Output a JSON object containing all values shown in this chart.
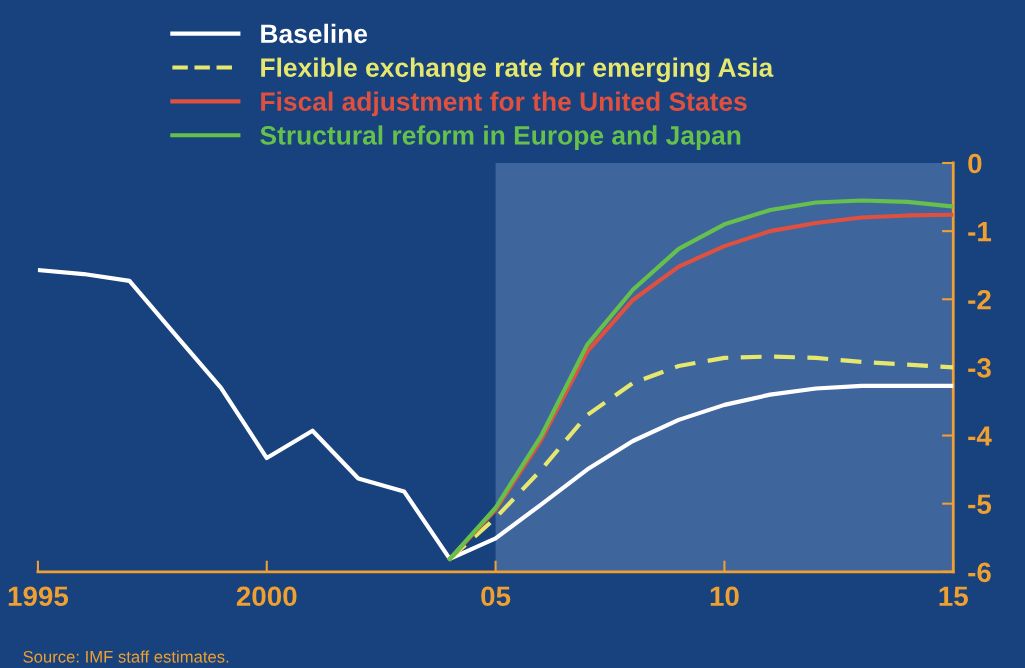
{
  "chart_data": {
    "type": "line",
    "x": [
      1995,
      1996,
      1997,
      1998,
      1999,
      2000,
      2001,
      2002,
      2003,
      2004,
      2005,
      2006,
      2007,
      2008,
      2009,
      2010,
      2011,
      2012,
      2013,
      2014,
      2015
    ],
    "series": [
      {
        "name": "Baseline",
        "color": "#ffffff",
        "line_style": "solid",
        "values": [
          -1.57,
          -1.63,
          -1.73,
          -2.52,
          -3.3,
          -4.33,
          -3.93,
          -4.63,
          -4.82,
          -5.81,
          -5.51,
          -5.01,
          -4.5,
          -4.08,
          -3.77,
          -3.55,
          -3.4,
          -3.31,
          -3.27,
          -3.27,
          -3.27
        ]
      },
      {
        "name": "Flexible exchange rate for emerging Asia",
        "color": "#e6e86e",
        "line_style": "dashed",
        "values": [
          null,
          null,
          null,
          null,
          null,
          null,
          null,
          null,
          null,
          -5.81,
          -5.21,
          -4.5,
          -3.7,
          -3.23,
          -2.98,
          -2.86,
          -2.84,
          -2.86,
          -2.92,
          -2.96,
          -3.0
        ]
      },
      {
        "name": "Fiscal adjustment for the United States",
        "color": "#e0503f",
        "line_style": "solid",
        "values": [
          null,
          null,
          null,
          null,
          null,
          null,
          null,
          null,
          null,
          -5.81,
          -5.09,
          -4.06,
          -2.77,
          -2.01,
          -1.52,
          -1.22,
          -1.0,
          -0.88,
          -0.8,
          -0.77,
          -0.76
        ]
      },
      {
        "name": "Structural reform in Europe and Japan",
        "color": "#66c04c",
        "line_style": "solid",
        "values": [
          null,
          null,
          null,
          null,
          null,
          null,
          null,
          null,
          null,
          -5.81,
          -5.06,
          -4.0,
          -2.67,
          -1.86,
          -1.26,
          -0.9,
          -0.69,
          -0.58,
          -0.55,
          -0.57,
          -0.64
        ]
      }
    ],
    "xlim": [
      1995,
      2015
    ],
    "ylim": [
      -6,
      0
    ],
    "xticks": [
      1995,
      2000,
      {
        "value": 2005,
        "label": "05"
      },
      {
        "value": 2010,
        "label": "10"
      },
      {
        "value": 2015,
        "label": "15"
      }
    ],
    "yticks": [
      0,
      -1,
      -2,
      -3,
      -4,
      -5,
      -6
    ],
    "bands": [
      {
        "axis": "x",
        "from": 2005,
        "to": 2015,
        "color": "#8aa6d6"
      }
    ],
    "annotations": [
      "Source: IMF staff estimates."
    ],
    "legend": "top left",
    "grid": false,
    "marker": "none"
  }
}
